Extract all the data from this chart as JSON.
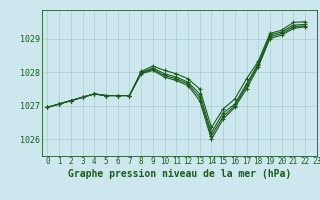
{
  "title": "Graphe pression niveau de la mer (hPa)",
  "background_color": "#cce8ee",
  "grid_color": "#aacccc",
  "line_color": "#1a5c1a",
  "marker_color": "#1a5c1a",
  "xlim": [
    -0.5,
    23
  ],
  "ylim": [
    1025.5,
    1029.85
  ],
  "yticks": [
    1026,
    1027,
    1028,
    1029
  ],
  "xticks": [
    0,
    1,
    2,
    3,
    4,
    5,
    6,
    7,
    8,
    9,
    10,
    11,
    12,
    13,
    14,
    15,
    16,
    17,
    18,
    19,
    20,
    21,
    22,
    23
  ],
  "series": [
    [
      1026.95,
      1027.05,
      1027.15,
      1027.25,
      1027.35,
      1027.3,
      1027.3,
      1027.3,
      1027.95,
      1028.05,
      1027.85,
      1027.75,
      1027.6,
      1027.15,
      1026.0,
      1026.6,
      1026.95,
      1027.5,
      1028.15,
      1029.0,
      1029.1,
      1029.3,
      1029.35,
      null
    ],
    [
      1026.95,
      1027.05,
      1027.15,
      1027.25,
      1027.35,
      1027.3,
      1027.3,
      1027.3,
      1027.97,
      1028.08,
      1027.9,
      1027.8,
      1027.65,
      1027.25,
      1026.1,
      1026.68,
      1027.0,
      1027.58,
      1028.2,
      1029.05,
      1029.15,
      1029.35,
      1029.38,
      null
    ],
    [
      1026.95,
      1027.05,
      1027.15,
      1027.25,
      1027.35,
      1027.3,
      1027.3,
      1027.3,
      1027.99,
      1028.12,
      1027.95,
      1027.85,
      1027.7,
      1027.35,
      1026.2,
      1026.78,
      1027.05,
      1027.65,
      1028.25,
      1029.1,
      1029.2,
      1029.4,
      1029.42,
      null
    ],
    [
      1026.95,
      1027.05,
      1027.15,
      1027.25,
      1027.35,
      1027.3,
      1027.3,
      1027.3,
      1028.02,
      1028.18,
      1028.05,
      1027.95,
      1027.8,
      1027.5,
      1026.35,
      1026.9,
      1027.2,
      1027.8,
      1028.32,
      1029.15,
      1029.25,
      1029.48,
      1029.5,
      null
    ]
  ],
  "ylabel_fontsize": 6,
  "xlabel_fontsize": 7,
  "tick_fontsize": 5.5,
  "linewidth": 0.8,
  "markersize": 3
}
